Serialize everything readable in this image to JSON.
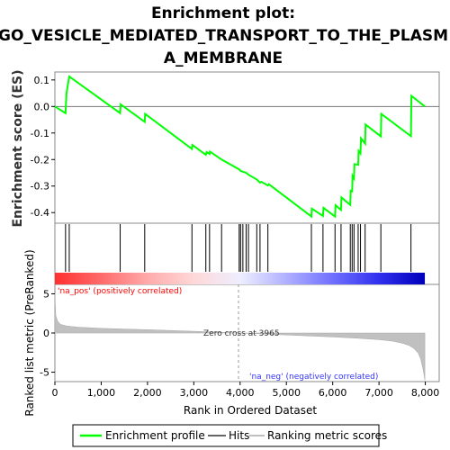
{
  "chart_data": {
    "type": "line",
    "title_lines": [
      "Enrichment plot:",
      "GO_VESICLE_MEDIATED_TRANSPORT_TO_THE_PLASM",
      "A_MEMBRANE"
    ],
    "top_panel": {
      "ylabel": "Enrichment score (ES)",
      "ylim": [
        -0.44,
        0.13
      ],
      "yticks": [
        0.1,
        0.0,
        -0.1,
        -0.2,
        -0.3,
        -0.4
      ],
      "ytick_labels": [
        "0.1",
        "0.0",
        "-0.1",
        "-0.2",
        "-0.3",
        "-0.4"
      ],
      "series": [
        {
          "name": "Enrichment profile",
          "color": "#00ff00",
          "x": [
            0,
            230,
            250,
            310,
            1410,
            1420,
            1940,
            1950,
            2960,
            2970,
            3260,
            3280,
            3340,
            3350,
            3600,
            3980,
            4010,
            4060,
            4130,
            4180,
            4360,
            4430,
            4460,
            4600,
            4620,
            5540,
            5550,
            5790,
            5800,
            6050,
            6060,
            6180,
            6190,
            6380,
            6390,
            6420,
            6430,
            6460,
            6470,
            6550,
            6560,
            6600,
            6610,
            6700,
            6710,
            7040,
            7050,
            7690,
            7700,
            7990
          ],
          "y": [
            0.0,
            -0.025,
            0.05,
            0.113,
            -0.025,
            0.008,
            -0.058,
            -0.028,
            -0.16,
            -0.145,
            -0.182,
            -0.172,
            -0.179,
            -0.17,
            -0.2,
            -0.237,
            -0.243,
            -0.246,
            -0.25,
            -0.257,
            -0.275,
            -0.287,
            -0.284,
            -0.298,
            -0.293,
            -0.415,
            -0.385,
            -0.413,
            -0.382,
            -0.415,
            -0.372,
            -0.39,
            -0.343,
            -0.371,
            -0.318,
            -0.32,
            -0.262,
            -0.271,
            -0.217,
            -0.22,
            -0.168,
            -0.177,
            -0.12,
            -0.14,
            -0.068,
            -0.113,
            -0.028,
            -0.112,
            0.04,
            0.0
          ]
        }
      ]
    },
    "hits_panel": {
      "hits_x": [
        230,
        310,
        1410,
        1940,
        2960,
        3260,
        3340,
        3600,
        3980,
        4010,
        4060,
        4130,
        4180,
        4360,
        4430,
        4600,
        5540,
        5790,
        6050,
        6180,
        6380,
        6420,
        6460,
        6550,
        6600,
        6700,
        7040,
        7690
      ],
      "color_bar_gradient": [
        "#ff3030",
        "#ff6a6a",
        "#ffaaaa",
        "#ffd8d8",
        "#eeeeff",
        "#b0b0ff",
        "#7070ff",
        "#3030ee",
        "#0000bb"
      ]
    },
    "bottom_panel": {
      "ylabel": "Ranked list metric (PreRanked)",
      "ylim": [
        -6.2,
        6.2
      ],
      "yticks": [
        5,
        0,
        -5
      ],
      "ytick_labels": [
        "5",
        "0",
        "-5"
      ],
      "zero_cross": 3965,
      "metric_x": [
        0,
        20,
        60,
        120,
        250,
        500,
        1000,
        1500,
        2000,
        2500,
        3000,
        3500,
        3965,
        4500,
        5000,
        5500,
        6000,
        6500,
        7000,
        7300,
        7500,
        7650,
        7750,
        7850,
        7900,
        7950,
        7990
      ],
      "metric_y": [
        5.0,
        2.2,
        1.5,
        1.1,
        0.9,
        0.75,
        0.6,
        0.5,
        0.42,
        0.32,
        0.22,
        0.1,
        0.0,
        -0.12,
        -0.25,
        -0.38,
        -0.5,
        -0.65,
        -0.85,
        -1.05,
        -1.3,
        -1.6,
        -1.95,
        -2.6,
        -3.3,
        -4.6,
        -6.0
      ],
      "pos_label": "'na_pos' (positively correlated)",
      "neg_label": "'na_neg' (negatively correlated)",
      "zero_label": "Zero cross at 3965"
    },
    "xlabel": "Rank in Ordered Dataset",
    "xlim": [
      0,
      8300
    ],
    "xticks": [
      0,
      1000,
      2000,
      3000,
      4000,
      5000,
      6000,
      7000,
      8000
    ],
    "xtick_labels": [
      "0",
      "1,000",
      "2,000",
      "3,000",
      "4,000",
      "5,000",
      "6,000",
      "7,000",
      "8,000"
    ],
    "legend": {
      "placement": "bottom",
      "items": [
        {
          "label": "Enrichment profile",
          "color": "#00ff00"
        },
        {
          "label": "Hits",
          "color": "#000000"
        },
        {
          "label": "Ranking metric scores",
          "color": "#c0c0c0"
        }
      ]
    }
  }
}
